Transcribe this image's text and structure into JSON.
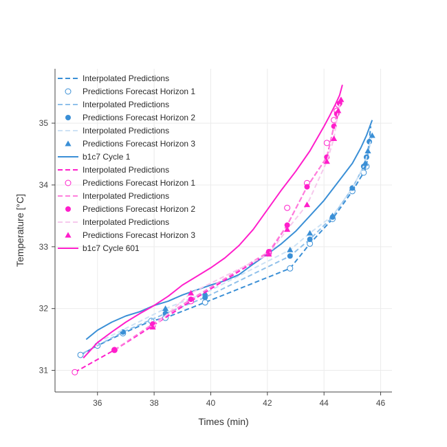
{
  "chart_data": {
    "type": "line",
    "title": "",
    "xlabel": "Times (min)",
    "ylabel": "Temperature [°C]",
    "xlim": [
      34.5,
      46.4
    ],
    "ylim": [
      30.65,
      35.88
    ],
    "xticks": [
      36,
      38,
      40,
      42,
      44,
      46
    ],
    "yticks": [
      31,
      32,
      33,
      34,
      35
    ],
    "grid": true,
    "legend_position": "top-left",
    "series": [
      {
        "name": "Interpolated Predictions",
        "kind": "line",
        "dash": true,
        "color": "#3a8fd6",
        "x": [
          35.4,
          36.0,
          36.9,
          37.9,
          38.4,
          39.8,
          42.8,
          43.5,
          44.3,
          45.0,
          45.4,
          45.5,
          45.65
        ],
        "y": [
          31.25,
          31.4,
          31.6,
          31.8,
          31.85,
          32.1,
          32.65,
          33.05,
          33.45,
          33.9,
          34.2,
          34.3,
          34.95
        ]
      },
      {
        "name": "Predictions Forecast Horizon 1",
        "kind": "marker",
        "marker": "circle-open",
        "color": "#3a8fd6",
        "x": [
          35.4,
          36.0,
          36.9,
          37.9,
          38.4,
          39.8,
          42.8,
          43.5,
          44.3,
          45.0,
          45.4,
          45.5
        ],
        "y": [
          31.25,
          31.4,
          31.6,
          31.8,
          31.85,
          32.1,
          32.65,
          33.05,
          33.45,
          33.9,
          34.2,
          34.3
        ]
      },
      {
        "name": "Interpolated Predictions",
        "kind": "line",
        "dash": true,
        "color": "#8fc0ea",
        "x": [
          35.5,
          36.9,
          38.4,
          39.8,
          42.8,
          43.5,
          44.3,
          45.0,
          45.4,
          45.5,
          45.65
        ],
        "y": [
          31.28,
          31.62,
          31.92,
          32.18,
          32.85,
          33.12,
          33.48,
          33.95,
          34.3,
          34.45,
          34.7
        ]
      },
      {
        "name": "Predictions Forecast Horizon 2",
        "kind": "marker",
        "marker": "circle",
        "color": "#3a8fd6",
        "x": [
          36.9,
          38.4,
          39.8,
          42.8,
          43.5,
          44.3,
          45.0,
          45.4,
          45.5,
          45.6
        ],
        "y": [
          31.62,
          31.92,
          32.18,
          32.85,
          33.12,
          33.48,
          33.95,
          34.3,
          34.45,
          34.7
        ]
      },
      {
        "name": "Interpolated Predictions",
        "kind": "line",
        "dash": true,
        "color": "#cde2f5",
        "x": [
          36.0,
          38.4,
          39.8,
          42.8,
          43.5,
          44.3,
          45.0,
          45.45,
          45.55,
          45.7
        ],
        "y": [
          31.45,
          32.0,
          32.25,
          32.95,
          33.22,
          33.5,
          33.95,
          34.35,
          34.55,
          34.8
        ]
      },
      {
        "name": "Predictions Forecast Horizon 3",
        "kind": "marker",
        "marker": "triangle",
        "color": "#3a8fd6",
        "x": [
          38.4,
          39.8,
          42.8,
          43.5,
          44.3,
          45.0,
          45.45,
          45.55,
          45.7
        ],
        "y": [
          32.0,
          32.25,
          32.95,
          33.22,
          33.5,
          33.95,
          34.35,
          34.55,
          34.8
        ]
      },
      {
        "name": "b1c7 Cycle 1",
        "kind": "line",
        "dash": false,
        "color": "#3a8fd6",
        "x": [
          35.6,
          36.0,
          36.5,
          37.0,
          37.5,
          38.0,
          38.5,
          39.0,
          39.5,
          40.0,
          40.5,
          41.0,
          41.5,
          42.0,
          42.5,
          43.0,
          43.5,
          44.0,
          44.5,
          45.0,
          45.3,
          45.5,
          45.7
        ],
        "y": [
          31.5,
          31.65,
          31.78,
          31.88,
          31.95,
          32.05,
          32.12,
          32.22,
          32.3,
          32.38,
          32.45,
          32.55,
          32.72,
          32.88,
          33.05,
          33.25,
          33.5,
          33.75,
          34.05,
          34.35,
          34.6,
          34.8,
          35.05
        ]
      },
      {
        "name": "Interpolated Predictions",
        "kind": "line",
        "dash": true,
        "color": "#ff1ecb",
        "x": [
          35.2,
          36.6,
          37.95,
          39.3,
          42.05,
          42.7,
          43.4,
          44.1,
          44.35,
          44.45,
          44.5,
          44.55
        ],
        "y": [
          30.97,
          31.33,
          31.72,
          32.12,
          32.9,
          33.35,
          33.97,
          34.45,
          34.95,
          35.05,
          35.2,
          35.32
        ]
      },
      {
        "name": "Predictions Forecast Horizon 1",
        "kind": "marker",
        "marker": "circle-open",
        "color": "#ff1ecb",
        "x": [
          35.2,
          36.6,
          37.95,
          39.3,
          42.05,
          42.7,
          43.4,
          44.1,
          44.35,
          44.45,
          44.5
        ],
        "y": [
          30.97,
          31.33,
          31.72,
          32.12,
          32.9,
          33.63,
          34.03,
          34.68,
          35.05,
          35.2,
          35.3
        ]
      },
      {
        "name": "Interpolated Predictions",
        "kind": "line",
        "dash": true,
        "color": "#ff7fdc",
        "x": [
          36.6,
          37.95,
          39.3,
          42.05,
          42.7,
          43.4,
          44.1,
          44.35,
          44.45,
          44.55
        ],
        "y": [
          31.33,
          31.75,
          32.15,
          32.92,
          33.35,
          33.97,
          34.45,
          34.95,
          35.15,
          35.32
        ]
      },
      {
        "name": "Predictions Forecast Horizon 2",
        "kind": "marker",
        "marker": "circle",
        "color": "#ff1ecb",
        "x": [
          36.6,
          37.95,
          39.3,
          42.05,
          42.7,
          43.4,
          44.1,
          44.35,
          44.45,
          44.55
        ],
        "y": [
          31.33,
          31.75,
          32.15,
          32.92,
          33.35,
          33.97,
          34.45,
          34.95,
          35.15,
          35.32
        ]
      },
      {
        "name": "Interpolated Predictions",
        "kind": "line",
        "dash": true,
        "color": "#f6c8ec",
        "x": [
          37.95,
          39.3,
          42.05,
          42.7,
          43.4,
          44.1,
          44.35,
          44.5,
          44.6
        ],
        "y": [
          31.7,
          32.25,
          32.88,
          33.28,
          33.68,
          34.38,
          34.75,
          35.2,
          35.38
        ]
      },
      {
        "name": "Predictions Forecast Horizon 3",
        "kind": "marker",
        "marker": "triangle",
        "color": "#ff1ecb",
        "x": [
          37.95,
          39.3,
          42.05,
          42.7,
          43.4,
          44.1,
          44.35,
          44.5,
          44.6
        ],
        "y": [
          31.7,
          32.25,
          32.88,
          33.28,
          33.68,
          34.38,
          34.75,
          35.2,
          35.38
        ]
      },
      {
        "name": "b1c7 Cycle 601",
        "kind": "line",
        "dash": false,
        "color": "#ff1ecb",
        "x": [
          35.5,
          36.0,
          36.5,
          37.0,
          37.5,
          38.0,
          38.5,
          39.0,
          39.5,
          40.0,
          40.5,
          41.0,
          41.5,
          42.0,
          42.5,
          43.0,
          43.5,
          44.0,
          44.2,
          44.4,
          44.55,
          44.65
        ],
        "y": [
          31.2,
          31.45,
          31.62,
          31.78,
          31.92,
          32.05,
          32.2,
          32.38,
          32.52,
          32.66,
          32.82,
          33.02,
          33.28,
          33.6,
          33.92,
          34.22,
          34.55,
          34.95,
          35.12,
          35.3,
          35.45,
          35.62
        ]
      }
    ]
  }
}
